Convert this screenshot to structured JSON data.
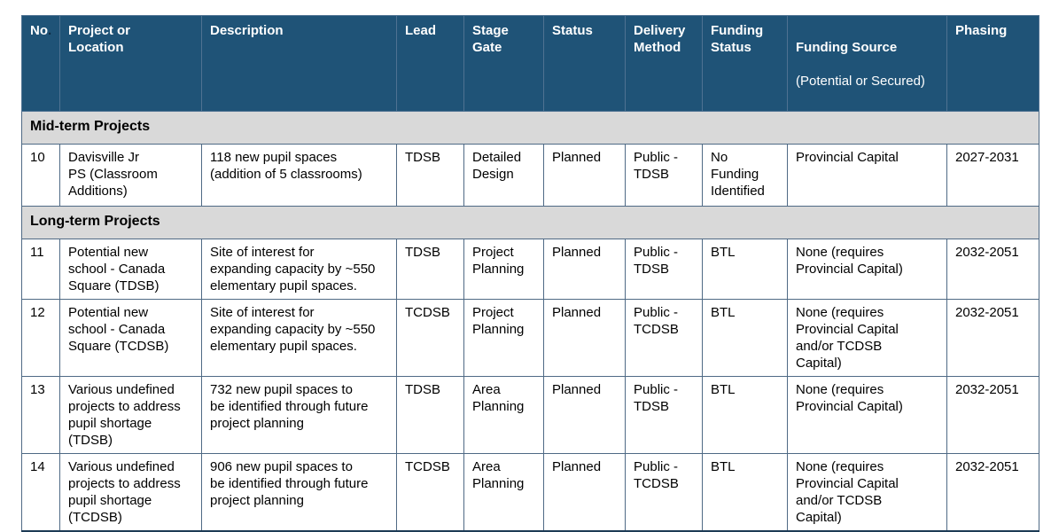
{
  "colors": {
    "header_background": "#1f5377",
    "header_text": "#ffffff",
    "section_background": "#d9d9d9",
    "cell_border": "#4f6a85",
    "outer_bottom_border": "#1d3b55",
    "body_text": "#000000"
  },
  "table": {
    "columns": [
      {
        "label": "No",
        "suffix": "."
      },
      {
        "label": "Project or\nLocation"
      },
      {
        "label": "Description"
      },
      {
        "label": "Lead"
      },
      {
        "label": "Stage\nGate"
      },
      {
        "label": "Status"
      },
      {
        "label": "Delivery\nMethod"
      },
      {
        "label": "Funding\nStatus"
      },
      {
        "label": "Funding Source",
        "sublabel": "(Potential or Secured)"
      },
      {
        "label": "Phasing"
      }
    ],
    "sections": [
      {
        "title": "Mid-term Projects",
        "rows": [
          {
            "cells": [
              "10",
              "Davisville Jr\nPS (Classroom\nAdditions)",
              "118 new pupil spaces\n(addition of 5 classrooms)",
              "TDSB",
              "Detailed\nDesign",
              "Planned",
              "Public -\nTDSB",
              "No Funding\nIdentified",
              "Provincial Capital",
              "2027-2031"
            ]
          }
        ]
      },
      {
        "title": "Long-term Projects",
        "rows": [
          {
            "cells": [
              "11",
              "Potential new\nschool - Canada\nSquare (TDSB)",
              "Site of interest for\nexpanding capacity by ~550\nelementary pupil spaces.",
              "TDSB",
              "Project\nPlanning",
              "Planned",
              "Public -\nTDSB",
              "BTL",
              "None (requires\nProvincial Capital)",
              "2032-2051"
            ]
          },
          {
            "cells": [
              "12",
              "Potential new\nschool - Canada\nSquare (TCDSB)",
              "Site of interest for\nexpanding capacity by ~550\nelementary pupil spaces.",
              "TCDSB",
              "Project\nPlanning",
              "Planned",
              "Public -\nTCDSB",
              "BTL",
              "None (requires\nProvincial Capital\nand/or TCDSB\nCapital)",
              "2032-2051"
            ]
          },
          {
            "cells": [
              "13",
              "Various undefined\nprojects to address\npupil shortage\n(TDSB)",
              "732 new pupil spaces to\nbe identified through future\nproject planning",
              "TDSB",
              "Area\nPlanning",
              "Planned",
              "Public -\nTDSB",
              "BTL",
              "None (requires\nProvincial Capital)",
              "2032-2051"
            ]
          },
          {
            "cells": [
              "14",
              "Various undefined\nprojects to address\npupil shortage\n(TCDSB)",
              "906 new pupil spaces to\nbe identified through future\nproject planning",
              "TCDSB",
              "Area\nPlanning",
              "Planned",
              "Public -\nTCDSB",
              "BTL",
              "None (requires\nProvincial Capital\nand/or TCDSB\nCapital)",
              "2032-2051"
            ]
          }
        ]
      }
    ]
  }
}
